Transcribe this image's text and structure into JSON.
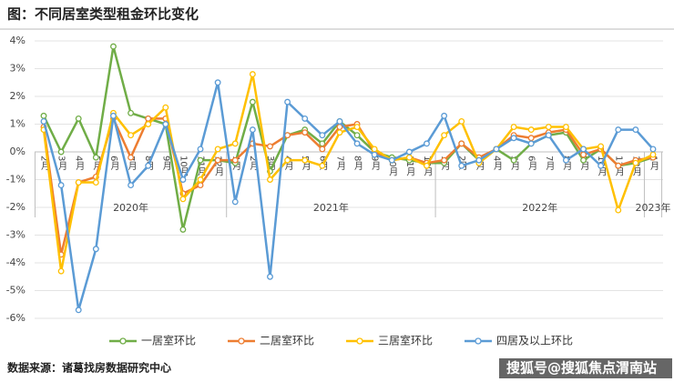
{
  "chart_data": {
    "type": "line",
    "title": "图：不同居室类型租金环比变化",
    "source": "数据来源：诸葛找房数据研究中心",
    "watermark": "搜狐号@搜狐焦点渭南站",
    "categories": [
      "2月",
      "3月",
      "4月",
      "5月",
      "6月",
      "7月",
      "8月",
      "9月",
      "10月",
      "11月",
      "12月",
      "1月",
      "2月",
      "3月",
      "4月",
      "5月",
      "6月",
      "7月",
      "8月",
      "9月",
      "10月",
      "11月",
      "12月",
      "1月",
      "2月",
      "3月",
      "4月",
      "5月",
      "6月",
      "7月",
      "8月",
      "9月",
      "10月",
      "11月",
      "12月",
      "1月"
    ],
    "years": [
      "2020年",
      "2021年",
      "2022年",
      "2023年"
    ],
    "ylim": [
      -6,
      4
    ],
    "yticks": [
      {
        "value": 4,
        "label": "4%"
      },
      {
        "value": 3,
        "label": "3%"
      },
      {
        "value": 2,
        "label": "2%"
      },
      {
        "value": 1,
        "label": "1%"
      },
      {
        "value": 0,
        "label": "0%"
      },
      {
        "value": -1,
        "label": "-1%"
      },
      {
        "value": -2,
        "label": "-2%"
      },
      {
        "value": -3,
        "label": "-3%"
      },
      {
        "value": -4,
        "label": "-4%"
      },
      {
        "value": -5,
        "label": "-5%"
      },
      {
        "value": -6,
        "label": "-6%"
      }
    ],
    "grid": true,
    "legend": "bottom",
    "series": [
      {
        "name": "一居室环比",
        "color": "#70ad47",
        "values": [
          1.3,
          0,
          1.2,
          -0.2,
          3.8,
          1.4,
          1.2,
          1.0,
          -2.8,
          -0.3,
          -0.3,
          -0.4,
          1.8,
          -0.7,
          0.6,
          0.8,
          0.3,
          1.1,
          0.6,
          0,
          -0.2,
          -0.3,
          -0.4,
          -0.4,
          0.3,
          -0.3,
          0.1,
          -0.3,
          0.3,
          0.6,
          0.7,
          -0.3,
          0.1,
          -0.5,
          -0.4,
          -0.2
        ]
      },
      {
        "name": "二居室环比",
        "color": "#ed7d31",
        "values": [
          0.9,
          -3.7,
          -1.1,
          -0.9,
          1.2,
          -0.2,
          1.2,
          1.2,
          -1.5,
          -1.2,
          -0.3,
          -0.3,
          0.3,
          0.2,
          0.6,
          0.7,
          0.1,
          0.9,
          1.0,
          0,
          -0.3,
          -0.2,
          -0.4,
          -0.3,
          0.3,
          -0.2,
          0.1,
          0.6,
          0.5,
          0.7,
          0.8,
          -0.1,
          0.1,
          -0.5,
          -0.3,
          -0.2
        ]
      },
      {
        "name": "三居室环比",
        "color": "#ffc000",
        "values": [
          0.8,
          -4.3,
          -1.1,
          -1.1,
          1.4,
          0.6,
          1.0,
          1.6,
          -1.7,
          -1.0,
          0.1,
          0.3,
          2.8,
          -1.0,
          -0.3,
          -0.3,
          -0.5,
          0.7,
          0.9,
          0.1,
          -0.3,
          -0.2,
          -0.5,
          0.6,
          1.1,
          -0.4,
          0.1,
          0.9,
          0.8,
          0.9,
          0.9,
          0.1,
          0.2,
          -2.1,
          -0.4,
          -0.1
        ]
      },
      {
        "name": "四居及以上环比",
        "color": "#5b9bd5",
        "values": [
          1.1,
          -1.2,
          -5.7,
          -3.5,
          1.3,
          -1.2,
          -0.5,
          1.0,
          -1.0,
          0.1,
          2.5,
          -1.8,
          0.8,
          -4.5,
          1.8,
          1.2,
          0.6,
          1.1,
          0.3,
          -0.1,
          -0.3,
          0,
          0.3,
          1.3,
          -0.5,
          -0.3,
          0.1,
          0.5,
          0.3,
          0.6,
          -0.3,
          0.1,
          -0.5,
          0.8,
          0.8,
          0.1
        ]
      }
    ]
  }
}
